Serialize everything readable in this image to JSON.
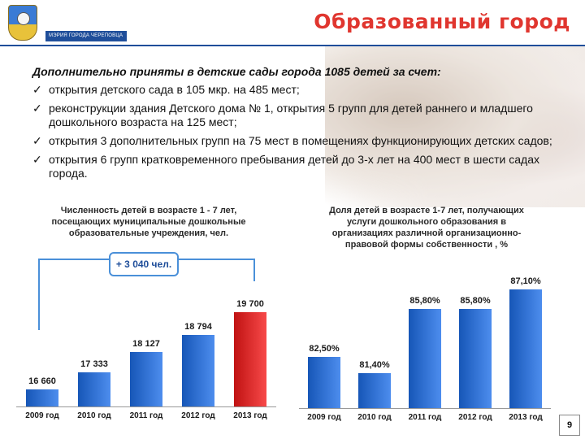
{
  "header": {
    "brand_title": "Образованный город",
    "mayor_label": "МЭРИЯ ГОРОДА ЧЕРЕПОВЦА"
  },
  "text": {
    "lead": "Дополнительно приняты в детские сады города 1085 детей за счет:",
    "bullets": [
      "открытия детского сада в 105 мкр. на 485 мест;",
      "реконструкции здания Детского дома № 1, открытия 5 групп для детей раннего и младшего дошкольного возраста на 125 мест;",
      "открытия 3 дополнительных групп на 75 мест в помещениях функционирующих детских садов;",
      "открытия 6 групп кратковременного пребывания детей до 3-х лет на 400 мест в шести садах города."
    ]
  },
  "callout": {
    "label": "+ 3 040 чел."
  },
  "page_number": "9",
  "colors": {
    "bar_blue": "#2f6fd0",
    "bar_red": "#d92b2b",
    "brand_red": "#e0362f",
    "callout_blue": "#4a90d9"
  },
  "chart_data": [
    {
      "type": "bar",
      "title": "Численность детей в возрасте 1 - 7 лет, посещающих муниципальные дошкольные образовательные учреждения, чел.",
      "categories": [
        "2009 год",
        "2010 год",
        "2011 год",
        "2012 год",
        "2013 год"
      ],
      "values": [
        16660,
        17333,
        18127,
        18794,
        19700
      ],
      "value_labels": [
        "16 660",
        "17 333",
        "18 127",
        "18 794",
        "19 700"
      ],
      "highlight_index": 4,
      "ylim": [
        16000,
        20200
      ]
    },
    {
      "type": "bar",
      "title": "Доля детей в возрасте 1-7 лет, получающих услуги дошкольного образования в организациях различной организационно-правовой формы собственности , %",
      "categories": [
        "2009 год",
        "2010 год",
        "2011 год",
        "2012 год",
        "2013 год"
      ],
      "values": [
        82.5,
        81.4,
        85.8,
        85.8,
        87.1
      ],
      "value_labels": [
        "82,50%",
        "81,40%",
        "85,80%",
        "85,80%",
        "87,10%"
      ],
      "ylim": [
        79,
        88
      ]
    }
  ]
}
